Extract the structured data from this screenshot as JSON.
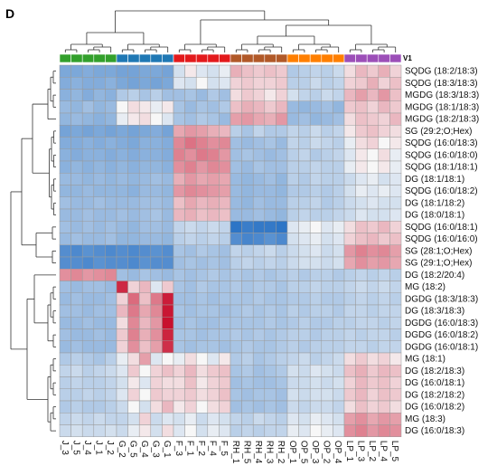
{
  "panel_label": "D",
  "chart_data": {
    "type": "heatmap",
    "annotation_label": "V1",
    "columns": [
      "J_3",
      "J_5",
      "J_4",
      "J_1",
      "J_2",
      "G_2",
      "G_5",
      "G_4",
      "G_3",
      "G_1",
      "F_3",
      "F_1",
      "F_2",
      "F_4",
      "F_5",
      "RH_1",
      "RH_5",
      "RH_4",
      "RH_3",
      "RH_2",
      "OP_1",
      "OP_5",
      "OP_3",
      "OP_2",
      "OP_4",
      "LP_1",
      "LP_3",
      "LP_2",
      "LP_4",
      "LP_5"
    ],
    "column_groups": [
      {
        "group": "J",
        "color": "#33a02c"
      },
      {
        "group": "G",
        "color": "#1f78b4"
      },
      {
        "group": "F",
        "color": "#e31a1c"
      },
      {
        "group": "RH",
        "color": "#b15928"
      },
      {
        "group": "OP",
        "color": "#ff7f00"
      },
      {
        "group": "LP",
        "color": "#9c4fb8"
      }
    ],
    "rows": [
      "SQDG (18:2/18:3)",
      "SQDG (18:3/18:3)",
      "MGDG (18:3/18:3)",
      "MGDG (18:1/18:3)",
      "MGDG (18:2/18:3)",
      "SG (29:2;O;Hex)",
      "SQDG (16:0/18:3)",
      "SQDG (16:0/18:0)",
      "SQDG (18:1/18:1)",
      "DG (18:1/18:1)",
      "SQDG (16:0/18:2)",
      "DG (18:1/18:2)",
      "DG (18:0/18:1)",
      "SQDG (16:0/18:1)",
      "SQDG (16:0/16:0)",
      "SG (28:1;O;Hex)",
      "SG (29:1;O;Hex)",
      "DG (18:2/20:4)",
      "MG (18:2)",
      "DGDG (18:3/18:3)",
      "DG (18:3/18:3)",
      "DGDG (16:0/18:3)",
      "DGDG (16:0/18:2)",
      "DGDG (16:0/18:1)",
      "MG (18:1)",
      "DG (18:2/18:3)",
      "DG (16:0/18:1)",
      "DG (18:2/18:2)",
      "DG (16:0/18:2)",
      "MG (18:3)",
      "DG (16:0/18:3)"
    ],
    "color_scale": {
      "low": "#1565c0",
      "mid": "#f7f7f7",
      "high": "#c8102e",
      "range": [
        -3,
        3
      ]
    },
    "values": [
      [
        -1.4,
        -1.4,
        -1.3,
        -1.4,
        -1.4,
        -1.5,
        -1.5,
        -1.4,
        -1.4,
        -1.5,
        -0.3,
        0.1,
        -0.2,
        -0.3,
        -0.1,
        0.7,
        0.5,
        0.4,
        0.5,
        0.4,
        -0.7,
        -0.6,
        -0.5,
        -0.6,
        -0.4,
        0.2,
        0.6,
        0.4,
        0.7,
        0.3
      ],
      [
        -1.3,
        -1.2,
        -1.3,
        -1.3,
        -1.2,
        -1.4,
        -1.5,
        -1.4,
        -1.5,
        -1.4,
        -0.2,
        -0.3,
        0.0,
        -0.3,
        -0.2,
        0.3,
        0.4,
        0.3,
        0.3,
        0.4,
        -0.6,
        -0.6,
        -0.4,
        -0.6,
        -0.5,
        0.3,
        0.4,
        0.7,
        0.3,
        0.5
      ],
      [
        -1.2,
        -1.1,
        -1.3,
        -1.1,
        -1.2,
        -0.7,
        -0.6,
        -0.8,
        -0.6,
        -0.9,
        -0.9,
        -0.8,
        -1.0,
        -0.7,
        -0.9,
        0.2,
        0.4,
        0.3,
        0.1,
        0.3,
        -0.3,
        -0.5,
        -0.6,
        -0.4,
        -0.5,
        0.6,
        0.9,
        0.6,
        1.0,
        0.5
      ],
      [
        -1.0,
        -1.1,
        -0.9,
        -1.1,
        -1.0,
        0.0,
        0.2,
        0.1,
        -0.1,
        0.1,
        -0.8,
        -1.0,
        -0.8,
        -0.9,
        -0.7,
        0.5,
        0.7,
        0.6,
        0.4,
        0.6,
        -1.0,
        -1.1,
        -1.0,
        -0.9,
        -1.1,
        0.4,
        0.5,
        0.3,
        0.6,
        0.4
      ],
      [
        -1.1,
        -1.0,
        -1.1,
        -1.2,
        -1.1,
        -0.1,
        0.1,
        0.2,
        0.0,
        -0.2,
        -0.8,
        -0.9,
        -0.7,
        -0.8,
        -1.0,
        0.9,
        1.0,
        0.8,
        0.7,
        1.0,
        -1.0,
        -0.9,
        -1.1,
        -1.0,
        -0.9,
        0.2,
        0.5,
        0.4,
        0.3,
        0.6
      ],
      [
        -1.5,
        -1.4,
        -1.5,
        -1.4,
        -1.5,
        -1.4,
        -1.5,
        -1.4,
        -1.3,
        -1.5,
        0.8,
        1.0,
        0.9,
        0.7,
        0.6,
        -0.6,
        -0.8,
        -0.5,
        -0.7,
        -0.7,
        -0.5,
        -0.6,
        -0.4,
        -0.6,
        -0.5,
        0.1,
        0.4,
        0.5,
        0.3,
        0.2
      ],
      [
        -1.3,
        -1.3,
        -1.2,
        -1.3,
        -1.2,
        -1.3,
        -1.4,
        -1.2,
        -1.2,
        -1.3,
        1.2,
        1.5,
        1.3,
        1.1,
        1.2,
        -0.9,
        -1.0,
        -0.9,
        -0.8,
        -1.0,
        -0.5,
        -0.6,
        -0.4,
        -0.5,
        -0.6,
        -0.1,
        0.2,
        0.3,
        0.0,
        0.1
      ],
      [
        -1.2,
        -1.3,
        -1.2,
        -1.2,
        -1.3,
        -1.2,
        -1.3,
        -1.2,
        -1.2,
        -1.3,
        1.3,
        1.1,
        1.4,
        1.3,
        1.0,
        -0.9,
        -0.8,
        -0.9,
        -1.0,
        -0.9,
        -0.6,
        -0.5,
        -0.7,
        -0.6,
        -0.5,
        -0.2,
        0.1,
        0.0,
        0.2,
        -0.1
      ],
      [
        -1.2,
        -1.1,
        -1.2,
        -1.1,
        -1.2,
        -1.1,
        -1.2,
        -1.1,
        -1.1,
        -1.2,
        1.1,
        1.3,
        1.0,
        1.2,
        1.1,
        -0.9,
        -1.0,
        -0.8,
        -0.9,
        -0.9,
        -0.6,
        -0.6,
        -0.5,
        -0.6,
        -0.6,
        -0.1,
        0.1,
        0.0,
        0.1,
        -0.1
      ],
      [
        -1.0,
        -1.0,
        -1.1,
        -1.0,
        -1.1,
        -1.0,
        -1.1,
        -1.0,
        -0.9,
        -1.0,
        0.7,
        1.0,
        0.8,
        0.9,
        0.8,
        -1.0,
        -1.1,
        -1.0,
        -0.9,
        -1.1,
        -0.6,
        -0.7,
        -0.5,
        -0.6,
        -0.6,
        -0.4,
        -0.2,
        -0.1,
        -0.3,
        -0.2
      ],
      [
        -1.1,
        -1.1,
        -1.0,
        -1.1,
        -1.1,
        -1.1,
        -1.2,
        -1.0,
        -1.0,
        -1.1,
        1.0,
        1.2,
        1.1,
        1.0,
        0.9,
        -1.0,
        -1.1,
        -1.0,
        -1.0,
        -1.1,
        -0.7,
        -0.7,
        -0.6,
        -0.7,
        -0.6,
        -0.3,
        -0.1,
        -0.2,
        -0.1,
        -0.2
      ],
      [
        -0.9,
        -1.0,
        -1.0,
        -0.9,
        -1.0,
        -1.0,
        -1.0,
        -0.9,
        -0.9,
        -1.0,
        0.5,
        0.8,
        0.6,
        0.7,
        0.6,
        -1.0,
        -1.1,
        -0.9,
        -1.0,
        -1.0,
        -0.6,
        -0.6,
        -0.5,
        -0.7,
        -0.6,
        -0.4,
        -0.3,
        -0.2,
        -0.3,
        -0.3
      ],
      [
        -1.0,
        -1.0,
        -0.9,
        -1.0,
        -1.0,
        -0.9,
        -1.0,
        -0.9,
        -0.8,
        -1.0,
        0.6,
        0.7,
        0.5,
        0.6,
        0.5,
        -1.0,
        -1.0,
        -0.9,
        -1.0,
        -1.1,
        -0.6,
        -0.5,
        -0.6,
        -0.6,
        -0.5,
        -0.4,
        -0.2,
        -0.3,
        -0.3,
        -0.2
      ],
      [
        -0.9,
        -1.0,
        -0.9,
        -1.0,
        -0.9,
        -1.0,
        -1.1,
        -0.9,
        -0.9,
        -1.0,
        -0.5,
        -0.4,
        -0.5,
        -0.4,
        -0.5,
        -2.6,
        -2.4,
        -2.5,
        -2.5,
        -2.6,
        -0.2,
        -0.1,
        0.0,
        -0.2,
        -0.1,
        0.2,
        0.5,
        0.4,
        0.6,
        0.3
      ],
      [
        -1.0,
        -0.9,
        -1.0,
        -1.0,
        -0.9,
        -1.1,
        -1.1,
        -1.0,
        -1.0,
        -1.1,
        -0.6,
        -0.5,
        -0.6,
        -0.5,
        -0.6,
        -2.0,
        -2.2,
        -2.1,
        -1.9,
        -2.1,
        -0.3,
        -0.2,
        -0.1,
        -0.3,
        -0.2,
        0.3,
        0.5,
        0.6,
        0.4,
        0.5
      ],
      [
        -2.0,
        -2.1,
        -1.9,
        -2.0,
        -2.1,
        -2.0,
        -2.1,
        -2.0,
        -1.9,
        -2.0,
        -0.8,
        -0.9,
        -0.7,
        -0.8,
        -0.9,
        -0.5,
        -0.6,
        -0.5,
        -0.4,
        -0.6,
        -0.4,
        -0.3,
        -0.2,
        -0.4,
        -0.3,
        1.0,
        1.3,
        1.1,
        1.2,
        0.9
      ],
      [
        -2.0,
        -2.0,
        -2.1,
        -1.9,
        -2.0,
        -2.0,
        -2.1,
        -1.9,
        -2.0,
        -2.0,
        -0.9,
        -0.8,
        -0.9,
        -0.8,
        -0.9,
        -0.6,
        -0.5,
        -0.6,
        -0.5,
        -0.6,
        -0.4,
        -0.3,
        -0.3,
        -0.4,
        -0.3,
        0.8,
        1.1,
        0.9,
        1.0,
        0.8
      ],
      [
        1.1,
        1.2,
        1.0,
        1.1,
        1.2,
        -0.9,
        -1.0,
        -0.8,
        -0.9,
        -1.0,
        -0.8,
        -0.9,
        -0.8,
        -0.7,
        -0.8,
        -0.7,
        -0.8,
        -0.7,
        -0.8,
        -0.7,
        -0.6,
        -0.7,
        -0.6,
        -0.6,
        -0.7,
        -0.6,
        -0.5,
        -0.6,
        -0.5,
        -0.6
      ],
      [
        -0.9,
        -1.0,
        -0.9,
        -0.9,
        -1.0,
        2.6,
        0.3,
        0.6,
        -0.2,
        0.4,
        -0.8,
        -0.9,
        -0.7,
        -0.8,
        -0.8,
        -0.7,
        -0.8,
        -0.7,
        -0.7,
        -0.8,
        -0.6,
        -0.6,
        -0.5,
        -0.6,
        -0.6,
        -0.5,
        -0.4,
        -0.5,
        -0.4,
        -0.5
      ],
      [
        -1.0,
        -0.9,
        -1.0,
        -1.0,
        -0.9,
        0.3,
        1.6,
        0.5,
        1.4,
        2.8,
        -0.9,
        -0.9,
        -0.8,
        -0.9,
        -0.8,
        -0.8,
        -0.8,
        -0.7,
        -0.8,
        -0.8,
        -0.7,
        -0.7,
        -0.6,
        -0.7,
        -0.7,
        -0.6,
        -0.5,
        -0.6,
        -0.5,
        -0.6
      ],
      [
        -0.9,
        -0.9,
        -1.0,
        -0.9,
        -0.9,
        0.6,
        1.4,
        0.8,
        1.2,
        2.9,
        -0.8,
        -0.9,
        -0.8,
        -0.8,
        -0.9,
        -0.8,
        -0.7,
        -0.8,
        -0.7,
        -0.8,
        -0.6,
        -0.7,
        -0.6,
        -0.6,
        -0.7,
        -0.5,
        -0.5,
        -0.6,
        -0.5,
        -0.5
      ],
      [
        -1.0,
        -1.0,
        -0.9,
        -1.0,
        -1.0,
        0.2,
        1.2,
        0.6,
        1.0,
        3.0,
        -0.9,
        -0.8,
        -0.9,
        -0.9,
        -0.8,
        -0.8,
        -0.8,
        -0.8,
        -0.7,
        -0.8,
        -0.7,
        -0.6,
        -0.7,
        -0.7,
        -0.6,
        -0.6,
        -0.5,
        -0.5,
        -0.6,
        -0.5
      ],
      [
        -0.9,
        -1.0,
        -1.0,
        -0.9,
        -1.0,
        0.4,
        1.3,
        0.7,
        1.1,
        2.7,
        -0.8,
        -0.8,
        -0.9,
        -0.8,
        -0.8,
        -0.7,
        -0.8,
        -0.7,
        -0.8,
        -0.7,
        -0.6,
        -0.6,
        -0.7,
        -0.6,
        -0.6,
        -0.5,
        -0.6,
        -0.5,
        -0.5,
        -0.6
      ],
      [
        -1.0,
        -0.9,
        -1.0,
        -1.0,
        -1.0,
        0.3,
        1.1,
        0.5,
        0.9,
        2.5,
        -0.8,
        -0.9,
        -0.8,
        -0.8,
        -0.9,
        -0.8,
        -0.7,
        -0.8,
        -0.8,
        -0.7,
        -0.6,
        -0.7,
        -0.6,
        -0.6,
        -0.6,
        -0.5,
        -0.5,
        -0.6,
        -0.5,
        -0.5
      ],
      [
        -0.7,
        -0.6,
        -0.7,
        -0.8,
        -0.6,
        -0.1,
        0.2,
        0.9,
        -0.2,
        0.0,
        -0.1,
        0.2,
        0.0,
        -0.2,
        0.1,
        -0.7,
        -0.6,
        -0.8,
        -0.7,
        -0.6,
        -0.5,
        -0.4,
        -0.6,
        -0.5,
        -0.4,
        0.2,
        0.4,
        0.2,
        0.3,
        0.1
      ],
      [
        -0.5,
        -0.4,
        -0.6,
        -0.5,
        -0.4,
        -0.2,
        0.4,
        0.0,
        0.3,
        0.5,
        0.3,
        0.6,
        0.2,
        0.4,
        0.5,
        -0.8,
        -0.7,
        -0.9,
        -0.8,
        -0.7,
        -0.3,
        -0.4,
        -0.2,
        -0.3,
        -0.4,
        0.5,
        0.7,
        0.4,
        0.6,
        0.5
      ],
      [
        -0.6,
        -0.5,
        -0.6,
        -0.6,
        -0.5,
        -0.3,
        0.1,
        -0.2,
        0.3,
        0.2,
        0.2,
        0.5,
        0.1,
        0.3,
        0.4,
        -0.9,
        -0.8,
        -0.9,
        -0.9,
        -0.8,
        -0.4,
        -0.4,
        -0.3,
        -0.4,
        -0.3,
        0.3,
        0.6,
        0.4,
        0.5,
        0.3
      ],
      [
        -0.6,
        -0.6,
        -0.5,
        -0.6,
        -0.5,
        -0.2,
        0.3,
        0.0,
        0.4,
        0.3,
        0.3,
        0.4,
        0.2,
        0.3,
        0.5,
        -0.8,
        -0.9,
        -0.8,
        -0.8,
        -0.9,
        -0.3,
        -0.4,
        -0.3,
        -0.3,
        -0.4,
        0.4,
        0.6,
        0.3,
        0.5,
        0.4
      ],
      [
        -0.7,
        -0.6,
        -0.7,
        -0.7,
        -0.6,
        -0.4,
        0.0,
        -0.3,
        0.2,
        0.6,
        0.1,
        0.3,
        0.0,
        0.2,
        0.3,
        -0.9,
        -0.8,
        -0.9,
        -0.8,
        -0.9,
        -0.4,
        -0.5,
        -0.4,
        -0.4,
        -0.5,
        0.2,
        0.5,
        0.3,
        0.4,
        0.2
      ],
      [
        -0.5,
        -0.4,
        -0.5,
        -0.4,
        -0.5,
        -0.5,
        -0.3,
        0.3,
        -0.4,
        -0.2,
        -0.3,
        -0.1,
        -0.4,
        -0.2,
        -0.3,
        -0.5,
        -0.6,
        -0.4,
        -0.5,
        -0.6,
        -0.2,
        -0.3,
        -0.1,
        -0.2,
        -0.3,
        0.9,
        1.1,
        0.8,
        1.0,
        0.9
      ],
      [
        -0.4,
        -0.3,
        -0.4,
        -0.4,
        -0.3,
        -0.4,
        -0.1,
        0.1,
        -0.3,
        0.2,
        -0.2,
        0.0,
        -0.3,
        -0.1,
        -0.2,
        -0.6,
        -0.5,
        -0.6,
        -0.5,
        -0.5,
        -0.1,
        -0.2,
        0.0,
        -0.1,
        -0.2,
        1.1,
        1.3,
        1.0,
        1.2,
        1.1
      ]
    ]
  }
}
